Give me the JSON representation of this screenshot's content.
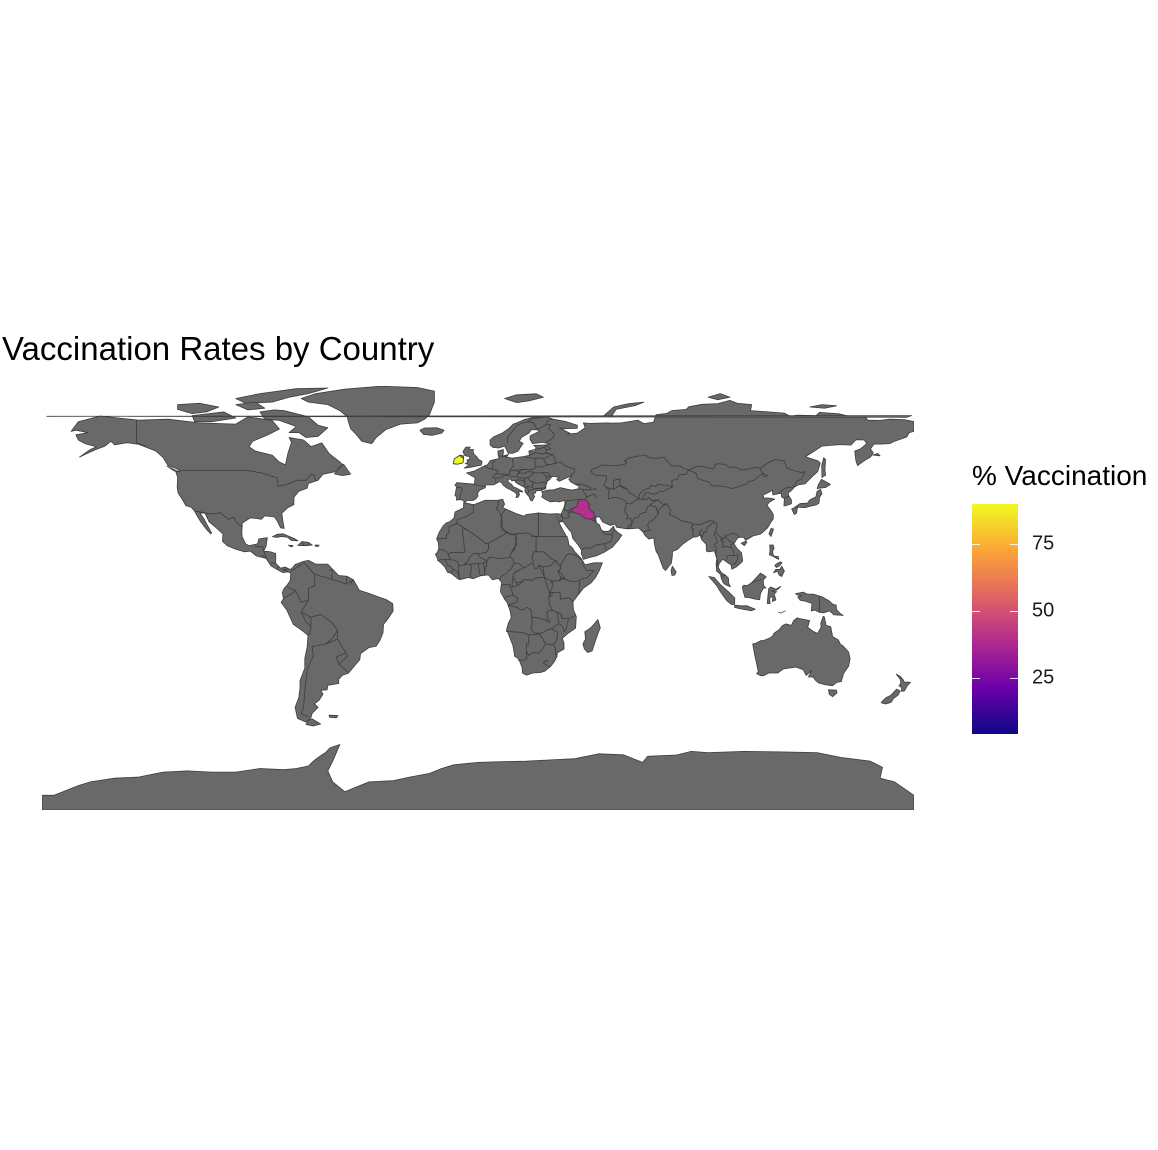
{
  "title": "Vaccination Rates by Country",
  "map": {
    "projection": "equirectangular",
    "land_color": "#696969",
    "border_color": "#3d3d3d",
    "background": "#ffffff"
  },
  "legend": {
    "title": "% Vaccination",
    "colormap": "plasma",
    "colors": [
      "#0d0887",
      "#6a00a8",
      "#b12a90",
      "#e16462",
      "#fca636",
      "#f0f921"
    ],
    "range": [
      4,
      90
    ],
    "ticks": [
      {
        "value": 25,
        "label": "25"
      },
      {
        "value": 50,
        "label": "50"
      },
      {
        "value": 75,
        "label": "75"
      }
    ]
  },
  "chart_data": {
    "type": "choropleth",
    "title": "Vaccination Rates by Country",
    "legend_title": "% Vaccination",
    "values": [
      {
        "country": "Ireland",
        "value": 90
      },
      {
        "country": "Iraq",
        "value": 40
      }
    ],
    "color_range": [
      4,
      90
    ],
    "no_data_color": "#696969"
  }
}
